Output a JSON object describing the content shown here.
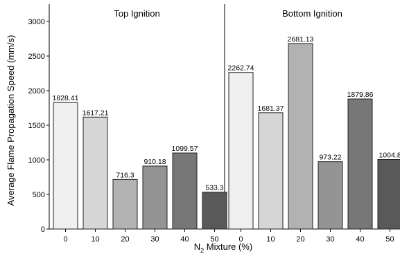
{
  "chart_data": {
    "type": "bar",
    "ylabel": "Average Flame Propagation Speed (mm/s)",
    "xlabel_prefix": "N",
    "xlabel_sub": "2",
    "xlabel_suffix": " Mixture (%)",
    "ylim": [
      0,
      3250
    ],
    "yticks": [
      0,
      500,
      1000,
      1500,
      2000,
      2500,
      3000
    ],
    "grid": false,
    "panels": [
      {
        "title": "Top Ignition",
        "categories": [
          "0",
          "10",
          "20",
          "30",
          "40",
          "50"
        ],
        "values": [
          1828.41,
          1617.21,
          716.3,
          910.18,
          1099.57,
          533.3
        ],
        "labels": [
          "1828.41",
          "1617.21",
          "716.3",
          "910.18",
          "1099.57",
          "533.3"
        ]
      },
      {
        "title": "Bottom Ignition",
        "categories": [
          "0",
          "10",
          "20",
          "30",
          "40",
          "50"
        ],
        "values": [
          2262.74,
          1681.37,
          2681.13,
          973.22,
          1879.86,
          1004.8
        ],
        "labels": [
          "2262.74",
          "1681.37",
          "2681.13",
          "973.22",
          "1879.86",
          "1004.8"
        ]
      }
    ],
    "colors": [
      "#efefef",
      "#d6d6d6",
      "#b2b2b2",
      "#949494",
      "#777777",
      "#595959"
    ]
  }
}
